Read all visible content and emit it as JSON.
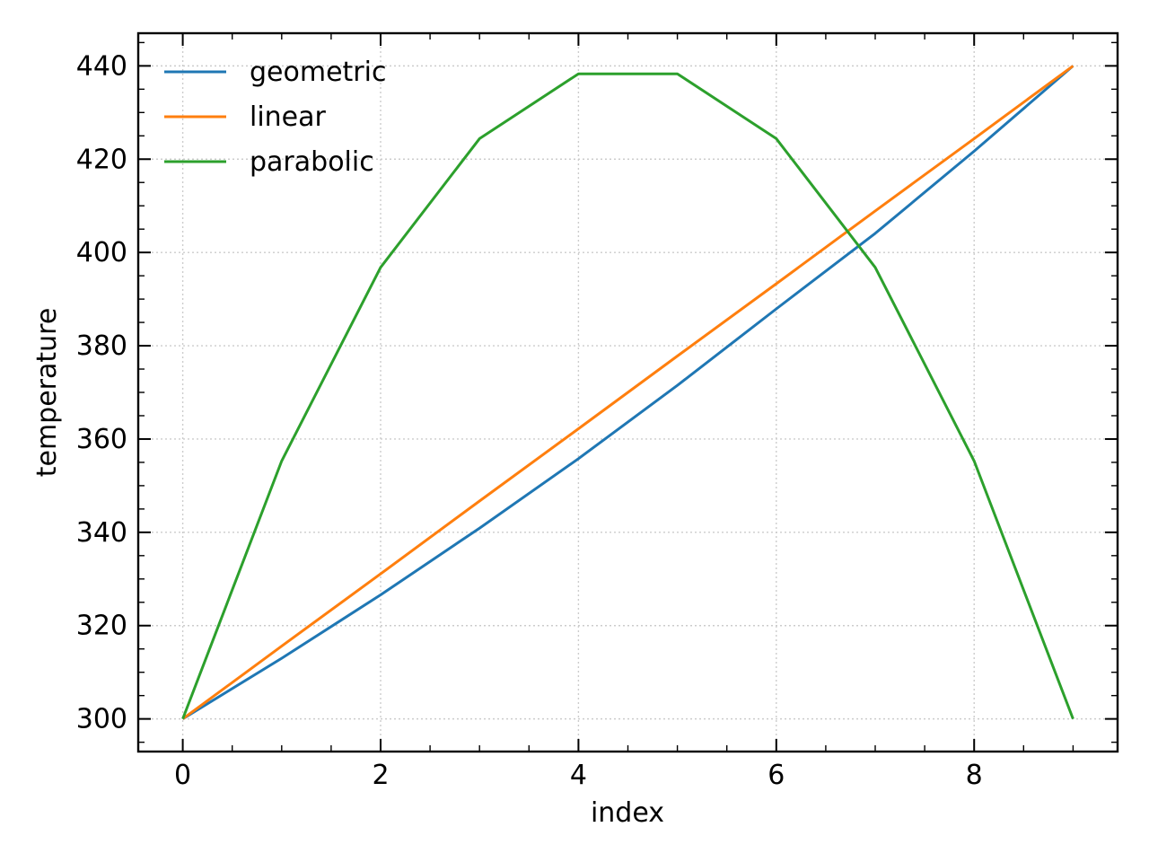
{
  "chart_data": {
    "type": "line",
    "title": "",
    "xlabel": "index",
    "ylabel": "temperature",
    "x": [
      0,
      1,
      2,
      3,
      4,
      5,
      6,
      7,
      8,
      9
    ],
    "xlim": [
      -0.45,
      9.45
    ],
    "ylim": [
      293,
      447
    ],
    "xticks": [
      0,
      2,
      4,
      6,
      8
    ],
    "yticks": [
      300,
      320,
      340,
      360,
      380,
      400,
      420,
      440
    ],
    "x_minor_step": 0.5,
    "y_minor_step": 5,
    "grid": true,
    "legend_position": "upper-left",
    "series": [
      {
        "name": "geometric",
        "color": "#1f77b4",
        "values": [
          300,
          313.0,
          326.6,
          340.9,
          355.8,
          371.5,
          387.9,
          404.1,
          421.7,
          440
        ]
      },
      {
        "name": "linear",
        "color": "#ff7f0e",
        "values": [
          300,
          315.6,
          331.1,
          346.7,
          362.2,
          377.8,
          393.3,
          408.9,
          424.4,
          440
        ]
      },
      {
        "name": "parabolic",
        "color": "#2ca02c",
        "values": [
          300,
          355.3,
          396.8,
          424.4,
          438.3,
          438.3,
          424.4,
          396.8,
          355.3,
          300
        ]
      }
    ]
  }
}
